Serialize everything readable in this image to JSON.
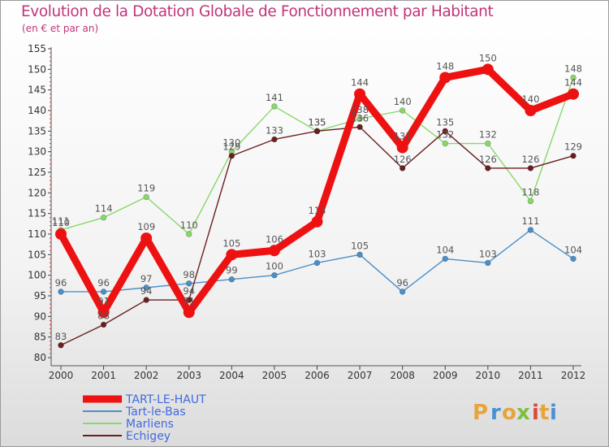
{
  "chart_data": {
    "type": "line",
    "title": "Evolution de la Dotation Globale de Fonctionnement par Habitant",
    "subtitle": "(en € et par an)",
    "xlabel": "",
    "ylabel": "",
    "ylim": [
      80,
      155
    ],
    "y_ticks": [
      80,
      85,
      90,
      95,
      100,
      105,
      110,
      115,
      120,
      125,
      130,
      135,
      140,
      145,
      150,
      155
    ],
    "x": [
      "2000",
      "2001",
      "2002",
      "2003",
      "2004",
      "2005",
      "2006",
      "2007",
      "2008",
      "2009",
      "2010",
      "2011",
      "2012"
    ],
    "grid": false,
    "legend_position": "bottom-left",
    "series": [
      {
        "name": "Tart-le-Bas",
        "color": "#4b8fc8",
        "values": [
          96,
          96,
          97,
          98,
          99,
          100,
          103,
          105,
          96,
          104,
          103,
          111,
          104
        ]
      },
      {
        "name": "Marliens",
        "color": "#88d86a",
        "values": [
          111,
          114,
          119,
          110,
          130,
          141,
          135,
          138,
          140,
          132,
          132,
          118,
          148
        ]
      },
      {
        "name": "Echigey",
        "color": "#6a1f1f",
        "values": [
          83,
          88,
          94,
          94,
          129,
          133,
          135,
          136,
          126,
          135,
          126,
          126,
          129
        ]
      },
      {
        "name": "TART-LE-HAUT",
        "color": "#ee1111",
        "values": [
          110,
          91,
          109,
          91,
          105,
          106,
          113,
          144,
          131,
          148,
          150,
          140,
          144
        ]
      }
    ],
    "legend_order": [
      "TART-LE-HAUT",
      "Tart-le-Bas",
      "Marliens",
      "Echigey"
    ]
  },
  "brand": {
    "letters": [
      "P",
      "r",
      "o",
      "x",
      "i",
      "t",
      "i"
    ],
    "colors": [
      "#e8a33a",
      "#4a8fd6",
      "#e8a33a",
      "#7fbf3f",
      "#d94a3a",
      "#e8a33a",
      "#4a8fd6"
    ]
  }
}
